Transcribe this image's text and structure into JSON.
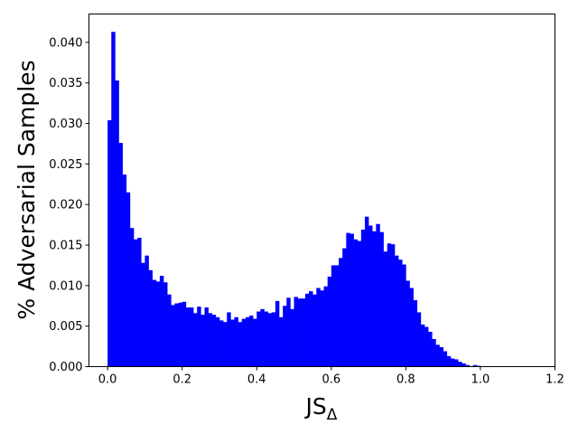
{
  "chart_data": {
    "type": "bar",
    "title": "",
    "xlabel": "JS",
    "xlabel_subscript": "Δ",
    "ylabel": "% Adversarial Samples",
    "xlim": [
      -0.05,
      1.2
    ],
    "ylim": [
      0,
      0.0435
    ],
    "xticks": [
      0.0,
      0.2,
      0.4,
      0.6,
      0.8,
      1.0,
      1.2
    ],
    "xtick_labels": [
      "0.0",
      "0.2",
      "0.4",
      "0.6",
      "0.8",
      "1.0",
      "1.2"
    ],
    "yticks": [
      0.0,
      0.005,
      0.01,
      0.015,
      0.02,
      0.025,
      0.03,
      0.035,
      0.04
    ],
    "ytick_labels": [
      "0.000",
      "0.005",
      "0.010",
      "0.015",
      "0.020",
      "0.025",
      "0.030",
      "0.035",
      "0.040"
    ],
    "bar_color": "#0000ff",
    "bin_start": 0.0,
    "bin_width": 0.01,
    "grid": false,
    "values": [
      0.0304,
      0.0413,
      0.0353,
      0.0276,
      0.0237,
      0.0215,
      0.0171,
      0.0157,
      0.0159,
      0.0128,
      0.0137,
      0.0119,
      0.0107,
      0.0105,
      0.0112,
      0.0104,
      0.0089,
      0.0076,
      0.0078,
      0.0079,
      0.008,
      0.0073,
      0.0073,
      0.0066,
      0.0074,
      0.0064,
      0.0073,
      0.0066,
      0.0064,
      0.0061,
      0.0057,
      0.0055,
      0.0067,
      0.0058,
      0.0061,
      0.0055,
      0.0059,
      0.0061,
      0.0063,
      0.0059,
      0.0068,
      0.0071,
      0.0068,
      0.0066,
      0.0067,
      0.0081,
      0.0061,
      0.0075,
      0.0085,
      0.0071,
      0.0086,
      0.0084,
      0.0084,
      0.009,
      0.0093,
      0.0089,
      0.0097,
      0.0094,
      0.0099,
      0.0111,
      0.0125,
      0.0125,
      0.0134,
      0.0146,
      0.0165,
      0.0164,
      0.0157,
      0.0155,
      0.0169,
      0.0185,
      0.0174,
      0.0167,
      0.0176,
      0.0166,
      0.0142,
      0.0152,
      0.0151,
      0.0137,
      0.0132,
      0.0126,
      0.0106,
      0.0097,
      0.0082,
      0.0067,
      0.0052,
      0.0049,
      0.0043,
      0.0034,
      0.0027,
      0.0024,
      0.0019,
      0.0013,
      0.001,
      0.0009,
      0.0006,
      0.0004,
      0.0002,
      0.0,
      0.0002,
      0.0001
    ]
  }
}
